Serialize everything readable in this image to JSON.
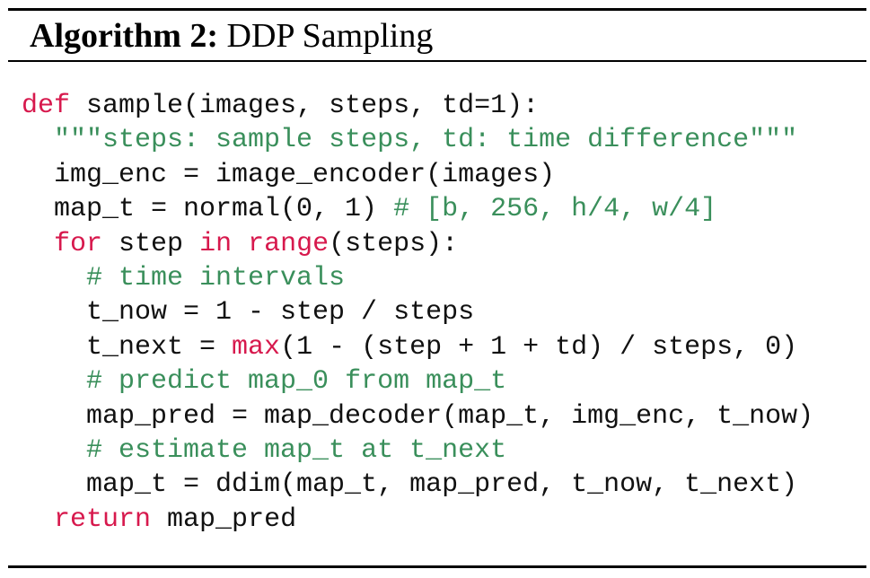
{
  "caption": {
    "label": "Algorithm 2:",
    "title": "DDP Sampling"
  },
  "code": {
    "lines": [
      [
        {
          "t": "def",
          "c": "kw"
        },
        {
          "t": " sample(images, steps, td=1):"
        }
      ],
      [
        {
          "t": "  "
        },
        {
          "t": "\"\"\"steps: sample steps, td: time difference\"\"\"",
          "c": "cm"
        }
      ],
      [
        {
          "t": "  img_enc = image_encoder(images)"
        }
      ],
      [
        {
          "t": "  map_t = normal(0, 1) "
        },
        {
          "t": "# [b, 256, h/4, w/4]",
          "c": "cm"
        }
      ],
      [
        {
          "t": "  "
        },
        {
          "t": "for",
          "c": "kw"
        },
        {
          "t": " step "
        },
        {
          "t": "in",
          "c": "kw"
        },
        {
          "t": " "
        },
        {
          "t": "range",
          "c": "kw"
        },
        {
          "t": "(steps):"
        }
      ],
      [
        {
          "t": "    "
        },
        {
          "t": "# time intervals",
          "c": "cm"
        }
      ],
      [
        {
          "t": "    t_now = 1 - step / steps"
        }
      ],
      [
        {
          "t": "    t_next = "
        },
        {
          "t": "max",
          "c": "kw"
        },
        {
          "t": "(1 - (step + 1 + td) / steps, 0)"
        }
      ],
      [
        {
          "t": "    "
        },
        {
          "t": "# predict map_0 from map_t",
          "c": "cm"
        }
      ],
      [
        {
          "t": "    map_pred = map_decoder(map_t, img_enc, t_now)"
        }
      ],
      [
        {
          "t": "    "
        },
        {
          "t": "# estimate map_t at t_next",
          "c": "cm"
        }
      ],
      [
        {
          "t": "    map_t = ddim(map_t, map_pred, t_now, t_next)"
        }
      ],
      [
        {
          "t": "  "
        },
        {
          "t": "return",
          "c": "kw"
        },
        {
          "t": " map_pred"
        }
      ]
    ]
  }
}
